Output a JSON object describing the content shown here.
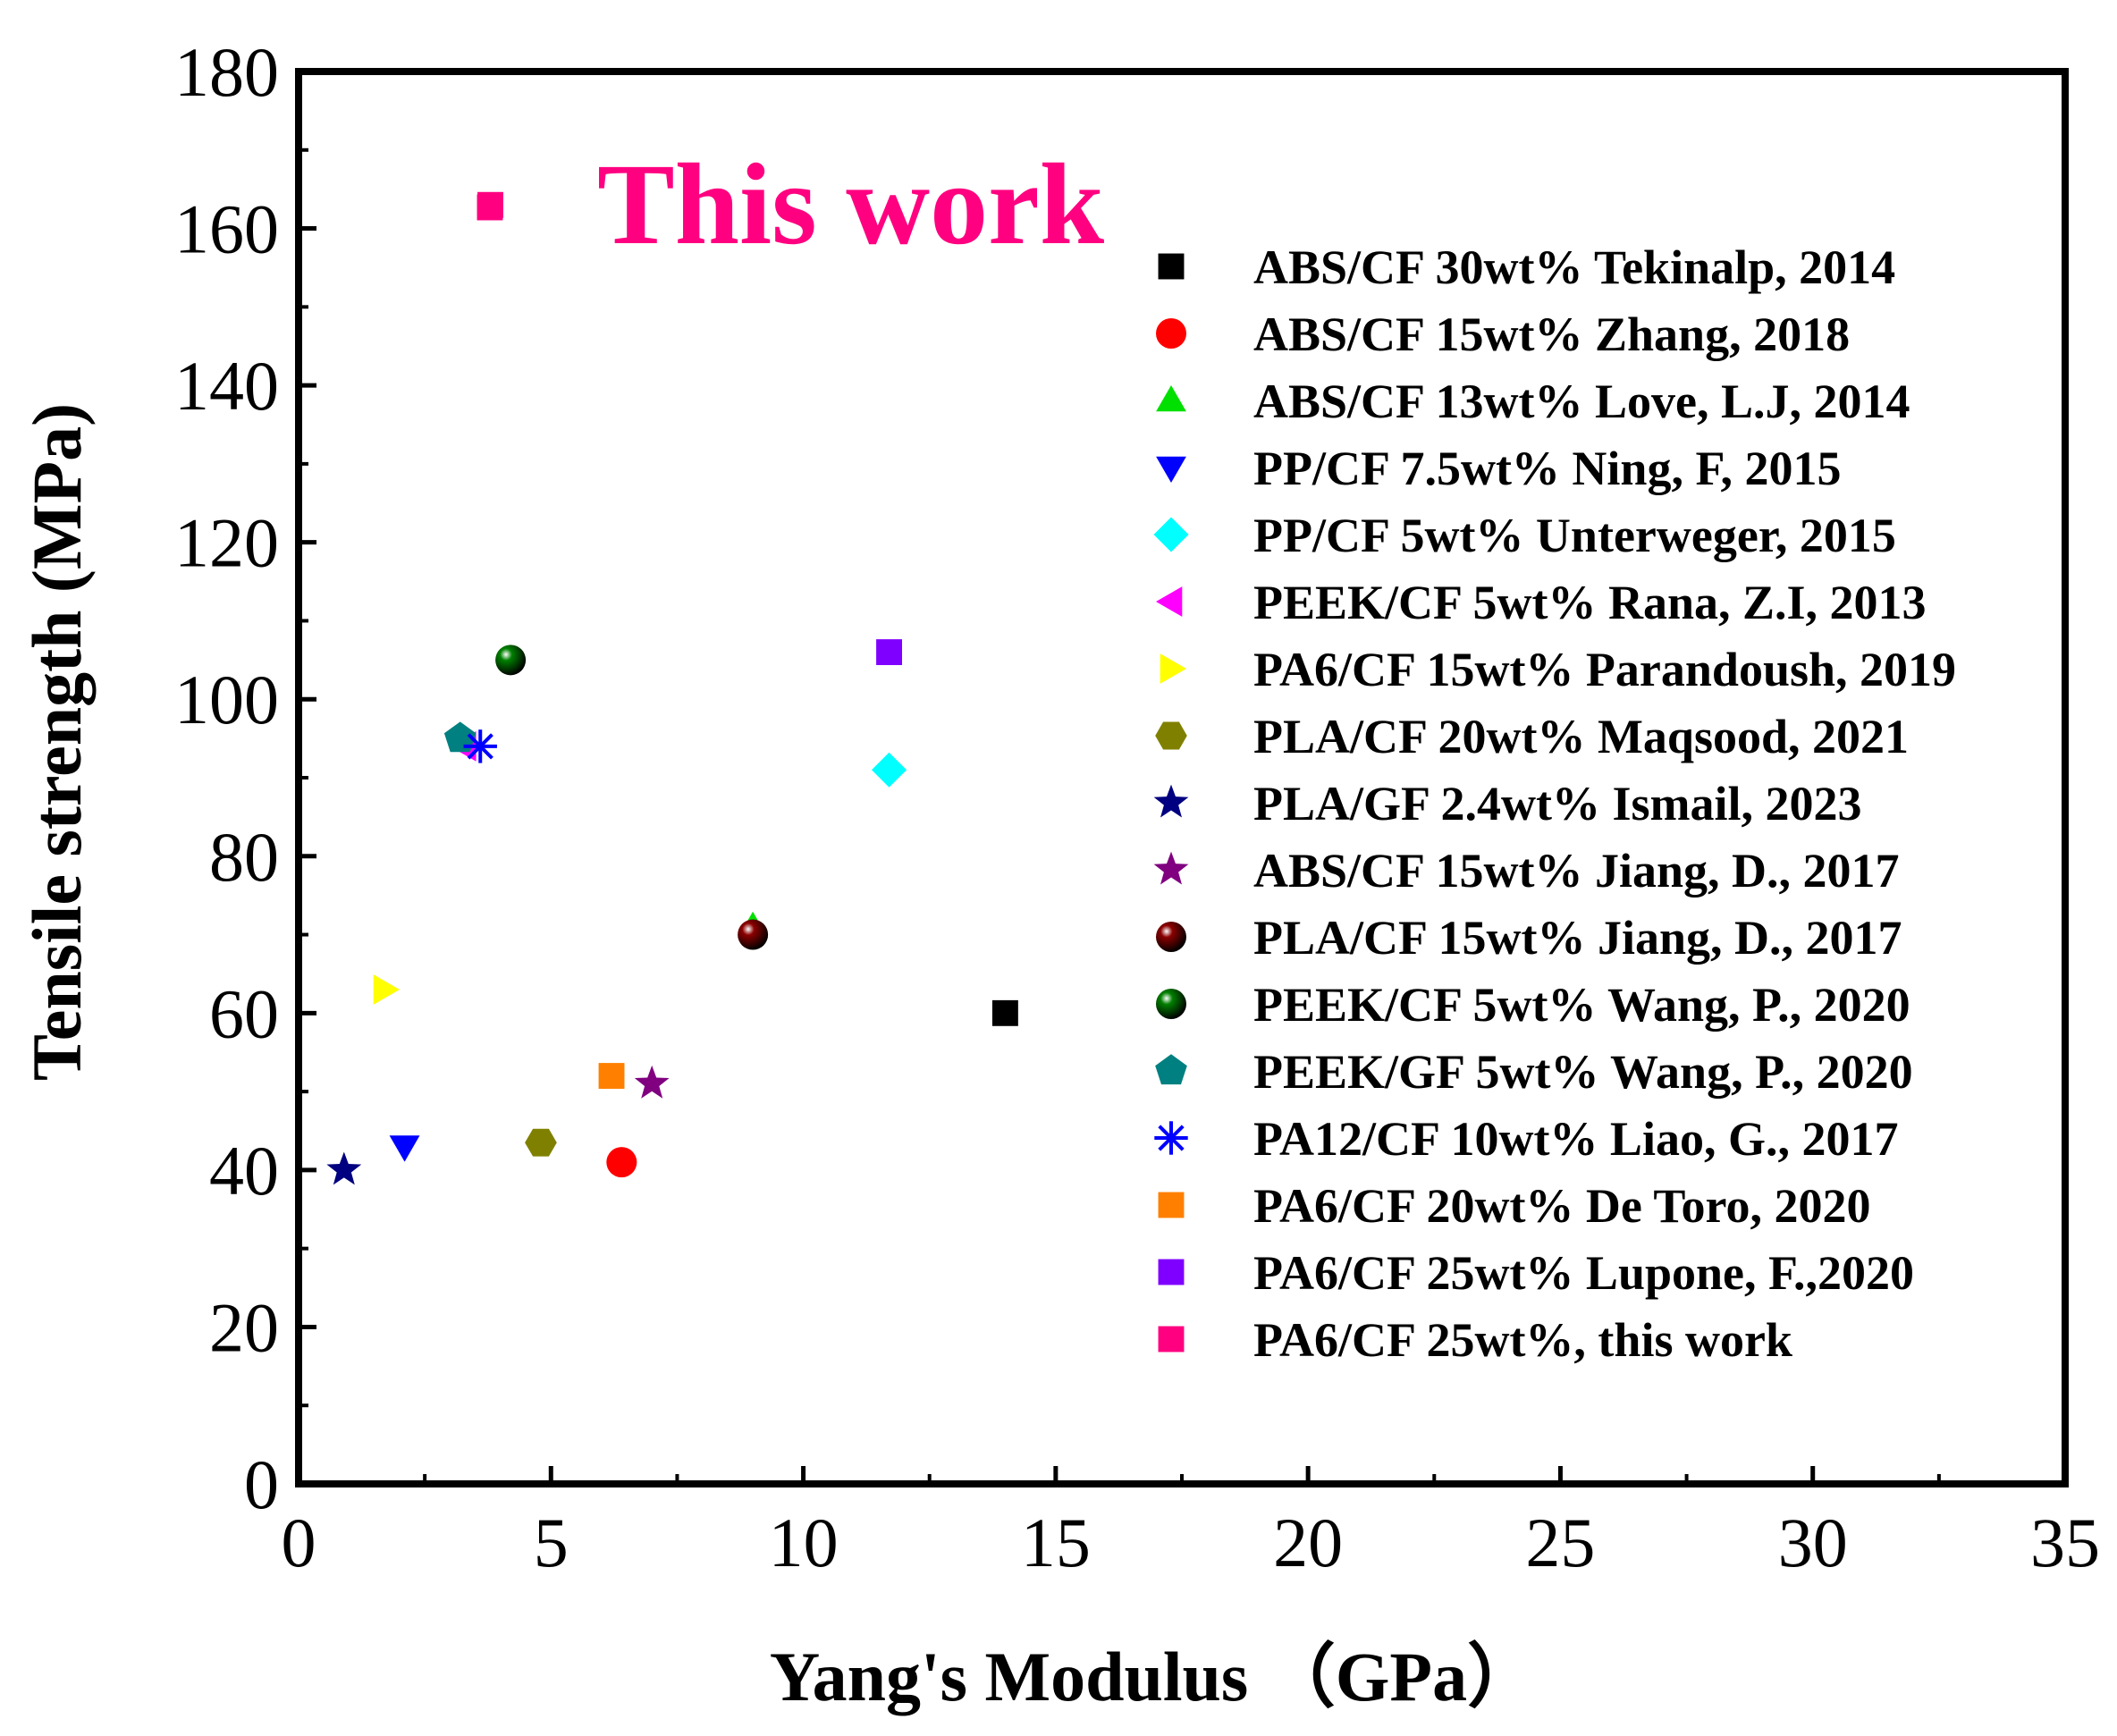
{
  "chart_data": {
    "type": "scatter",
    "title": "",
    "annotation": "This work",
    "xlabel": "Yang's Modulus （GPa）",
    "ylabel": "Tensile strength (MPa)",
    "xlim": [
      0,
      35
    ],
    "ylim": [
      0,
      180
    ],
    "x_ticks": [
      "0",
      "5",
      "10",
      "15",
      "20",
      "25",
      "30",
      "35"
    ],
    "y_ticks": [
      "0",
      "20",
      "40",
      "60",
      "80",
      "100",
      "120",
      "140",
      "160",
      "180"
    ],
    "legend_position": "right",
    "series": [
      {
        "name": "ABS/CF 30wt% Tekinalp, 2014",
        "marker": "square",
        "color": "#000000",
        "x": 14.0,
        "y": 60
      },
      {
        "name": "ABS/CF 15wt% Zhang, 2018",
        "marker": "circle",
        "color": "#ff0000",
        "x": 6.4,
        "y": 41
      },
      {
        "name": "ABS/CF 13wt% Love, L.J, 2014",
        "marker": "triangle-up",
        "color": "#00e000",
        "x": 9.0,
        "y": 71
      },
      {
        "name": "PP/CF 7.5wt% Ning, F, 2015",
        "marker": "triangle-down",
        "color": "#0000ff",
        "x": 2.1,
        "y": 43
      },
      {
        "name": "PP/CF 5wt%   Unterweger, 2015",
        "marker": "diamond",
        "color": "#00ffff",
        "x": 11.7,
        "y": 91
      },
      {
        "name": "PEEK/CF 5wt% Rana, Z.I, 2013",
        "marker": "triangle-left",
        "color": "#ff00ff",
        "x": 3.3,
        "y": 94
      },
      {
        "name": "PA6/CF 15wt% Parandoush, 2019",
        "marker": "triangle-right",
        "color": "#ffff00",
        "x": 1.7,
        "y": 63
      },
      {
        "name": "PLA/CF 20wt% Maqsood, 2021",
        "marker": "hexagon",
        "color": "#808000",
        "x": 4.8,
        "y": 43.5
      },
      {
        "name": "PLA/GF 2.4wt% Ismail, 2023",
        "marker": "star",
        "color": "#000080",
        "x": 0.9,
        "y": 40
      },
      {
        "name": "ABS/CF 15wt% Jiang, D., 2017",
        "marker": "star",
        "color": "#800080",
        "x": 7.0,
        "y": 51
      },
      {
        "name": "PLA/CF 15wt% Jiang, D., 2017",
        "marker": "sphere",
        "color": "#8b0000",
        "x": 9.0,
        "y": 70
      },
      {
        "name": "PEEK/CF 5wt% Wang, P., 2020",
        "marker": "sphere",
        "color": "#008000",
        "x": 4.2,
        "y": 105
      },
      {
        "name": "PEEK/GF 5wt% Wang, P., 2020",
        "marker": "pentagon",
        "color": "#008080",
        "x": 3.2,
        "y": 95
      },
      {
        "name": "PA12/CF 10wt% Liao, G., 2017",
        "marker": "asterisk",
        "color": "#0000ff",
        "x": 3.6,
        "y": 94
      },
      {
        "name": "PA6/CF 20wt% De Toro,  2020",
        "marker": "square",
        "color": "#ff8000",
        "x": 6.2,
        "y": 52
      },
      {
        "name": "PA6/CF 25wt% Lupone, F.,2020",
        "marker": "square",
        "color": "#8000ff",
        "x": 11.7,
        "y": 106
      },
      {
        "name": "PA6/CF 25wt%, this work",
        "marker": "square",
        "color": "#ff0080",
        "x": 3.8,
        "y": 163
      }
    ]
  }
}
